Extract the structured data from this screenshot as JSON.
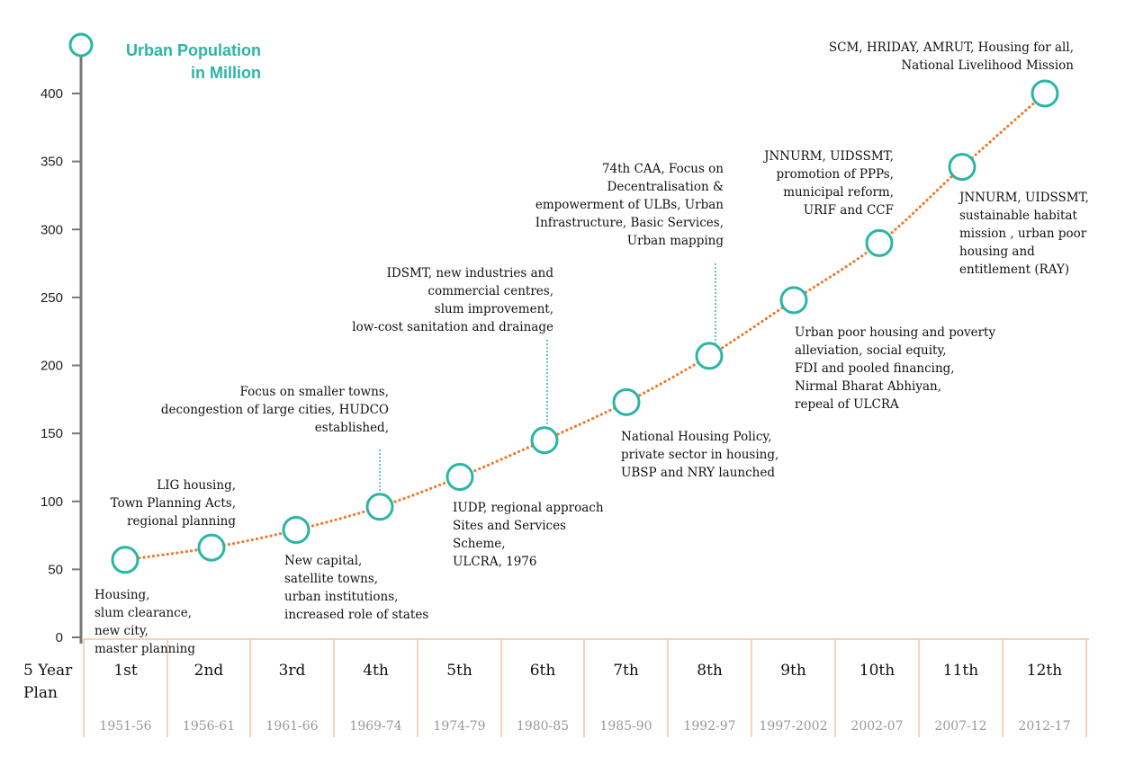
{
  "chart_data": {
    "type": "line",
    "ylabel": "Urban Population in Million",
    "ylabel_lines": [
      "Urban Population",
      "in Million"
    ],
    "yticks": [
      0,
      50,
      100,
      150,
      200,
      250,
      300,
      350,
      400
    ],
    "ylim": [
      0,
      400
    ],
    "xaxis_title_lines": [
      "5 Year",
      "Plan"
    ],
    "plans": [
      "1st",
      "2nd",
      "3rd",
      "4th",
      "5th",
      "6th",
      "7th",
      "8th",
      "9th",
      "10th",
      "11th",
      "12th"
    ],
    "periods": [
      "1951-56",
      "1956-61",
      "1961-66",
      "1969-74",
      "1974-79",
      "1980-85",
      "1985-90",
      "1992-97",
      "1997-2002",
      "2002-07",
      "2007-12",
      "2012-17"
    ],
    "values": [
      57,
      66,
      79,
      96,
      118,
      145,
      173,
      207,
      248,
      290,
      346,
      400
    ],
    "line_color": "#f07a2e",
    "marker_color": "#2ab5a5",
    "annotations": [
      {
        "plan": "1st",
        "lines": [
          "Housing,",
          "slum clearance,",
          "new city,",
          "master planning"
        ]
      },
      {
        "plan": "2nd",
        "lines": [
          "LIG housing,",
          "Town Planning Acts,",
          "regional planning"
        ]
      },
      {
        "plan": "3rd",
        "lines": [
          "New capital,",
          "satellite towns,",
          "urban institutions,",
          "increased role of states"
        ]
      },
      {
        "plan": "4th",
        "lines": [
          "Focus on smaller towns,",
          "decongestion of large cities, HUDCO",
          "established,"
        ]
      },
      {
        "plan": "5th",
        "lines": [
          "IUDP, regional approach",
          "Sites and Services",
          "Scheme,",
          "ULCRA, 1976"
        ]
      },
      {
        "plan": "6th",
        "lines": [
          "IDSMT, new industries and",
          "commercial centres,",
          "slum improvement,",
          "low-cost sanitation and drainage"
        ]
      },
      {
        "plan": "7th",
        "lines": [
          "National Housing Policy,",
          "private sector in housing,",
          "UBSP and NRY launched"
        ]
      },
      {
        "plan": "8th",
        "lines": [
          "74th CAA, Focus on",
          "Decentralisation &",
          "empowerment of ULBs, Urban",
          "Infrastructure, Basic Services,",
          "Urban mapping"
        ]
      },
      {
        "plan": "9th",
        "lines": [
          "Urban poor housing and poverty",
          "alleviation, social equity,",
          "FDI and pooled financing,",
          "Nirmal Bharat Abhiyan,",
          "repeal of ULCRA"
        ]
      },
      {
        "plan": "10th",
        "lines": [
          "JNNURM, UIDSSMT,",
          "promotion of PPPs,",
          "municipal reform,",
          "URIF and CCF"
        ]
      },
      {
        "plan": "11th",
        "lines": [
          "JNNURM, UIDSSMT,",
          "sustainable habitat",
          "mission , urban poor",
          "housing and",
          "entitlement (RAY)"
        ]
      },
      {
        "plan": "12th",
        "lines": [
          "SCM, HRIDAY, AMRUT, Housing for all,",
          "National Livelihood Mission"
        ]
      }
    ]
  }
}
